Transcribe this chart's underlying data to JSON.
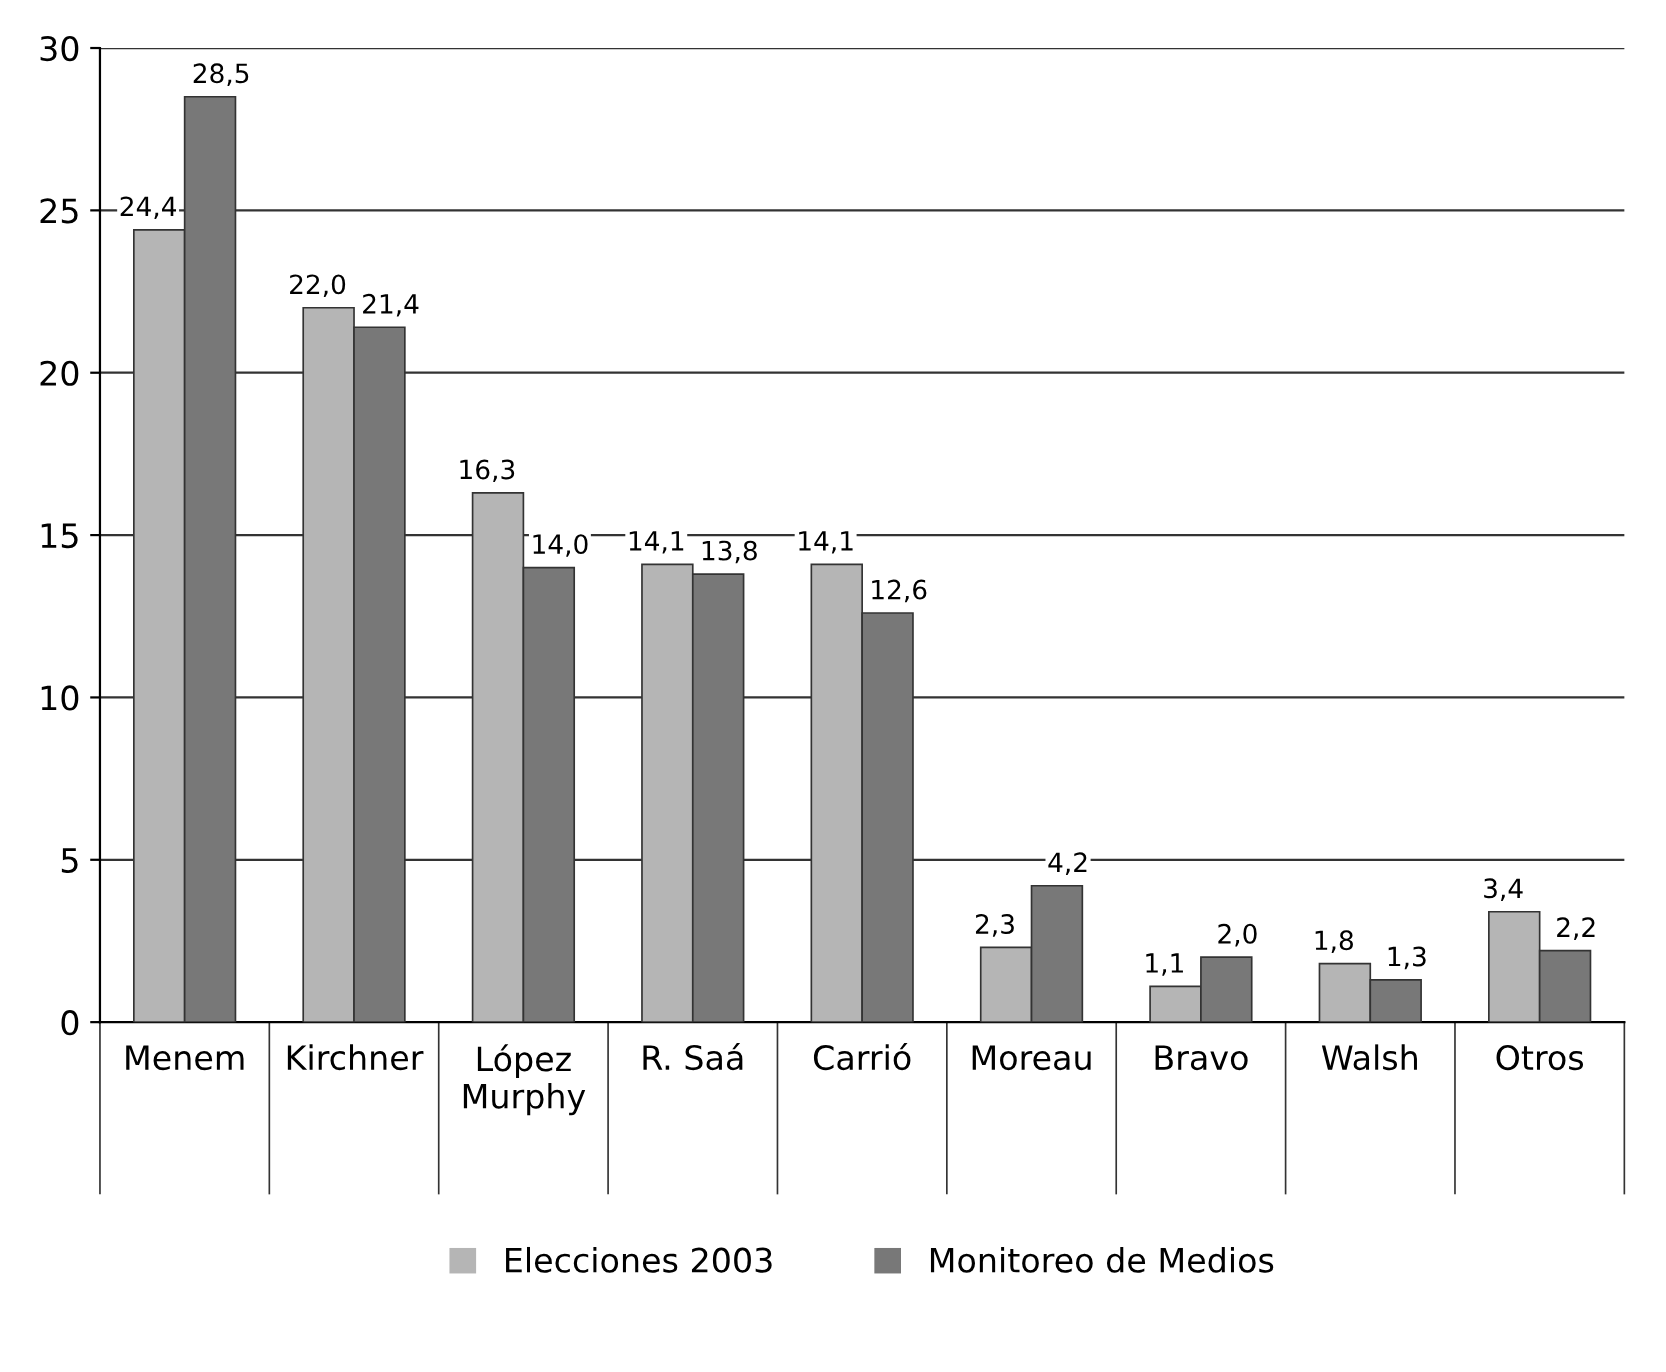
{
  "chart_data": {
    "type": "bar",
    "categories": [
      "Menem",
      "Kirchner",
      "López\nMurphy",
      "R. Saá",
      "Carrió",
      "Moreau",
      "Bravo",
      "Walsh",
      "Otros"
    ],
    "series": [
      {
        "name": "Elecciones 2003",
        "color": "#b5b5b5",
        "values": [
          24.4,
          22.0,
          16.3,
          14.1,
          14.1,
          2.3,
          1.1,
          1.8,
          3.4
        ],
        "value_labels": [
          "24,4",
          "22,0",
          "16,3",
          "14,1",
          "14,1",
          "2,3",
          "1,1",
          "1,8",
          "3,4"
        ]
      },
      {
        "name": "Monitoreo de Medios",
        "color": "#787878",
        "values": [
          28.5,
          21.4,
          14.0,
          13.8,
          12.6,
          4.2,
          2.0,
          1.3,
          2.2
        ],
        "value_labels": [
          "28,5",
          "21,4",
          "14,0",
          "13,8",
          "12,6",
          "4,2",
          "2,0",
          "1,3",
          "2,2"
        ]
      }
    ],
    "ylim": [
      0,
      30
    ],
    "yticks": [
      0,
      5,
      10,
      15,
      20,
      25,
      30
    ],
    "grid": "y",
    "legend": "bottom"
  }
}
